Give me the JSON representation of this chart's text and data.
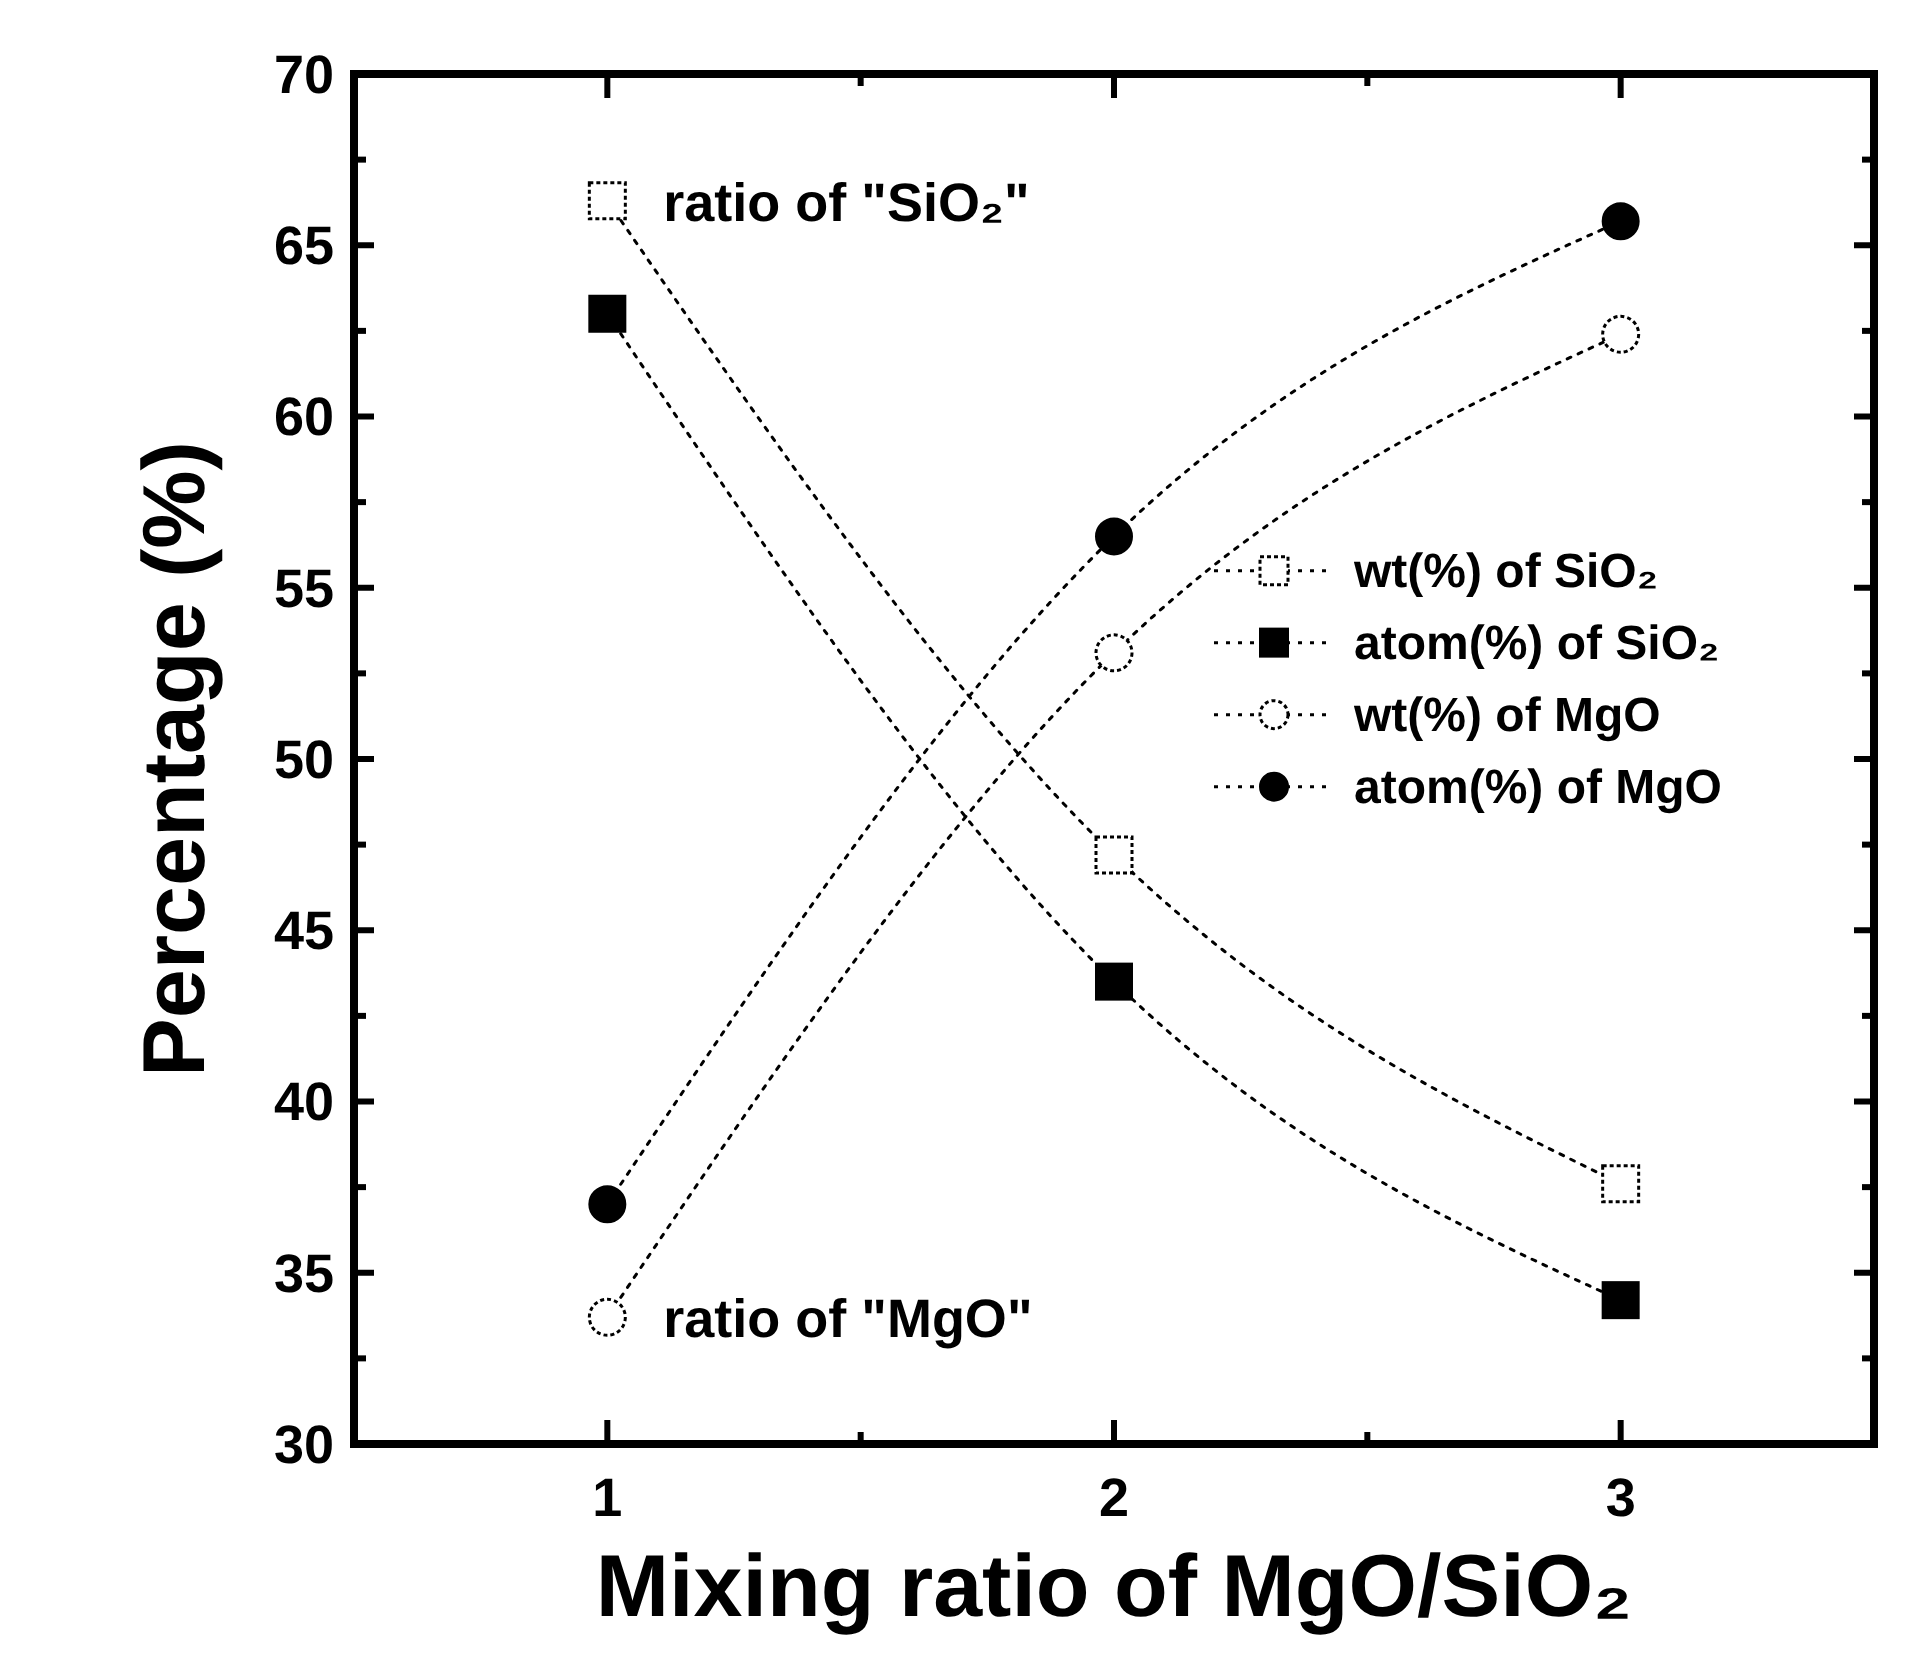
{
  "chart_data": {
    "type": "line",
    "xlabel": "Mixing ratio of MgO/SiO₂",
    "ylabel": "Percentage (%)",
    "x": [
      1,
      2,
      3
    ],
    "xlim": [
      0.5,
      3.5
    ],
    "xticks": [
      1,
      {
        "value": 1.5,
        "label": null
      },
      2,
      {
        "value": 2.5,
        "label": null
      },
      3
    ],
    "ylim": [
      30,
      70
    ],
    "yticks": [
      30,
      {
        "value": 32.5,
        "label": null
      },
      35,
      {
        "value": 37.5,
        "label": null
      },
      40,
      {
        "value": 42.5,
        "label": null
      },
      45,
      {
        "value": 47.5,
        "label": null
      },
      50,
      {
        "value": 52.5,
        "label": null
      },
      55,
      {
        "value": 57.5,
        "label": null
      },
      60,
      {
        "value": 62.5,
        "label": null
      },
      65,
      {
        "value": 67.5,
        "label": null
      },
      70
    ],
    "series": [
      {
        "name": "wt(%) of SiO₂",
        "color": "#000000",
        "marker": "square-open",
        "values": [
          66.3,
          47.2,
          37.6
        ]
      },
      {
        "name": "atom(%) of SiO₂",
        "color": "#000000",
        "marker": "square",
        "values": [
          63.0,
          43.5,
          34.2
        ]
      },
      {
        "name": "wt(%) of MgO",
        "color": "#000000",
        "marker": "circle-open",
        "values": [
          33.7,
          53.1,
          62.4
        ]
      },
      {
        "name": "atom(%) of MgO",
        "color": "#000000",
        "marker": "circle",
        "values": [
          37.0,
          56.5,
          65.7
        ]
      }
    ],
    "line_style": "dotted",
    "legend": "right",
    "grid": false,
    "annotations": [
      {
        "text": "ratio of \"SiO₂\"",
        "x": 1,
        "y": 66.3
      },
      {
        "text": "ratio of \"MgO\"",
        "x": 1,
        "y": 33.7
      }
    ]
  }
}
